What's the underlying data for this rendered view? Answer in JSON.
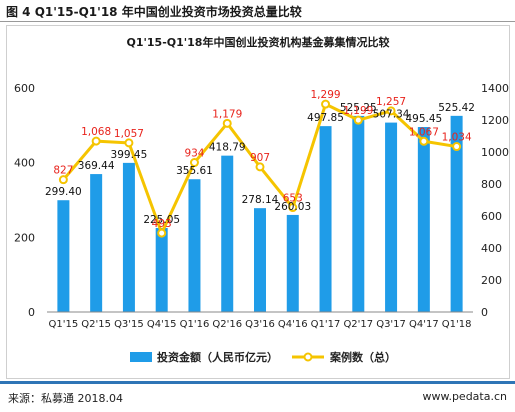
{
  "header": {
    "figure_title": "图 4 Q1'15-Q1'18 年中国创业投资市场投资总量比较"
  },
  "footer": {
    "source": "来源：私募通 2018.04",
    "url": "www.pedata.cn"
  },
  "colors": {
    "bars": "#1f9ce8",
    "line": "#f5c400",
    "line_labels": "#e8231c",
    "rule": "#2e75b6"
  },
  "chart_data": {
    "type": "bar",
    "title": "Q1'15-Q1'18年中国创业投资机构基金募集情况比较",
    "categories": [
      "Q1'15",
      "Q2'15",
      "Q3'15",
      "Q4'15",
      "Q1'16",
      "Q2'16",
      "Q3'16",
      "Q4'16",
      "Q1'17",
      "Q2'17",
      "Q3'17",
      "Q4'17",
      "Q1'18"
    ],
    "series": [
      {
        "name": "投资金额（人民币亿元）",
        "type": "bar",
        "axis": "left",
        "values": [
          299.4,
          369.44,
          399.45,
          225.05,
          355.61,
          418.79,
          278.14,
          260.03,
          497.85,
          525.25,
          507.34,
          495.45,
          525.42
        ],
        "labels": [
          "299.40",
          "369.44",
          "399.45",
          "225.05",
          "355.61",
          "418.79",
          "278.14",
          "260.03",
          "497.85",
          "525.25",
          "507.34",
          "495.45",
          "525.42"
        ]
      },
      {
        "name": "案例数（总）",
        "type": "line",
        "axis": "right",
        "values": [
          827,
          1068,
          1057,
          493,
          934,
          1179,
          907,
          653,
          1299,
          1199,
          1257,
          1067,
          1034
        ],
        "labels": [
          "827",
          "1,068",
          "1,057",
          "493",
          "934",
          "1,179",
          "907",
          "653",
          "1,299",
          "1,199",
          "1,257",
          "1,067",
          "1,034"
        ]
      }
    ],
    "y_left": {
      "range": [
        0,
        600
      ],
      "ticks": [
        "0",
        "200",
        "400",
        "600"
      ]
    },
    "y_right": {
      "range": [
        0,
        1400
      ],
      "ticks": [
        "0",
        "200",
        "400",
        "600",
        "800",
        "1000",
        "1200",
        "1400"
      ]
    },
    "grid": false,
    "legend": "bottom"
  }
}
